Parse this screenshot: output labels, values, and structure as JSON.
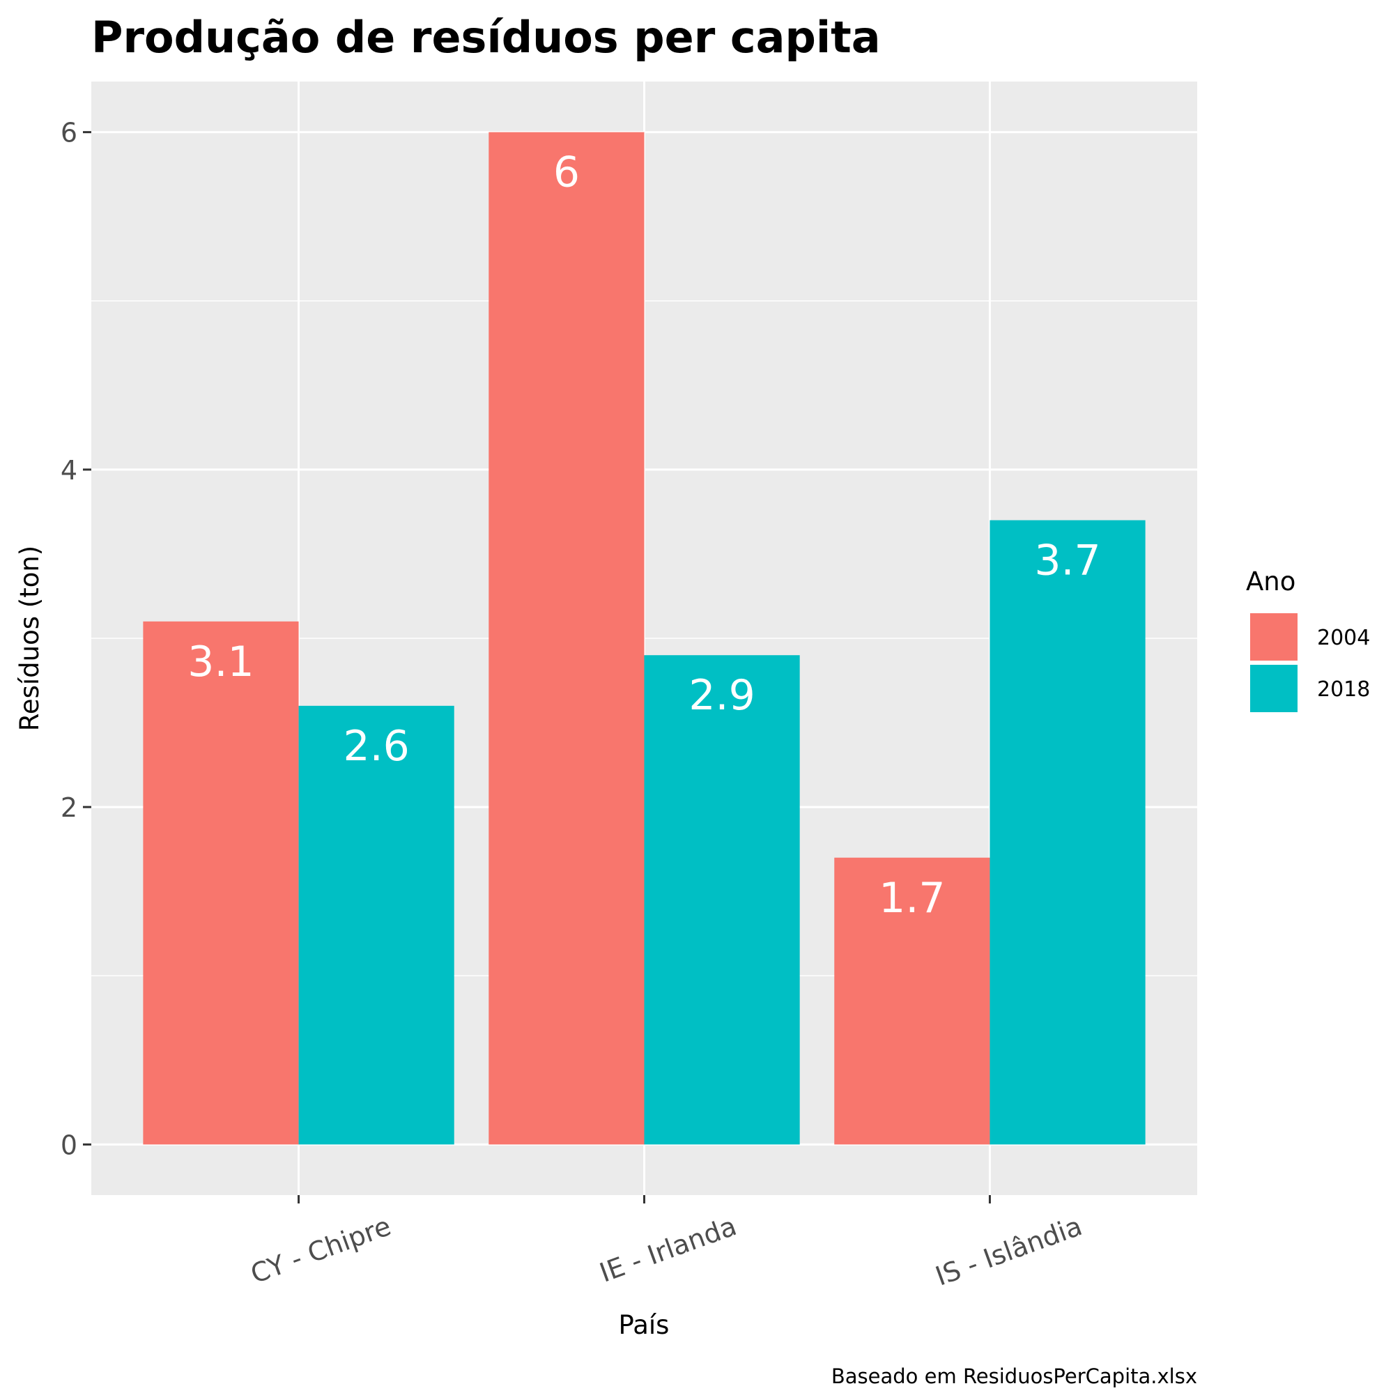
{
  "chart_data": {
    "type": "bar",
    "title": "Produção de resíduos per capita",
    "xlabel": "País",
    "ylabel": "Resíduos (ton)",
    "caption": "Baseado em ResiduosPerCapita.xlsx",
    "categories": [
      "CY - Chipre",
      "IE - Irlanda",
      "IS - Islândia"
    ],
    "series": [
      {
        "name": "2004",
        "color": "#F8766D",
        "values": [
          3.1,
          6,
          1.7
        ],
        "labels": [
          "3.1",
          "6",
          "1.7"
        ]
      },
      {
        "name": "2018",
        "color": "#00BFC4",
        "values": [
          2.6,
          2.9,
          3.7
        ],
        "labels": [
          "2.6",
          "2.9",
          "3.7"
        ]
      }
    ],
    "ylim": [
      -0.3,
      6.3
    ],
    "yticks": [
      0,
      2,
      4,
      6
    ],
    "ytick_labels": [
      "0",
      "2",
      "4",
      "6"
    ],
    "legend": {
      "title": "Ano",
      "position": "right"
    },
    "grid": true,
    "panel_color": "#EBEBEB",
    "grid_color": "#FFFFFF"
  }
}
